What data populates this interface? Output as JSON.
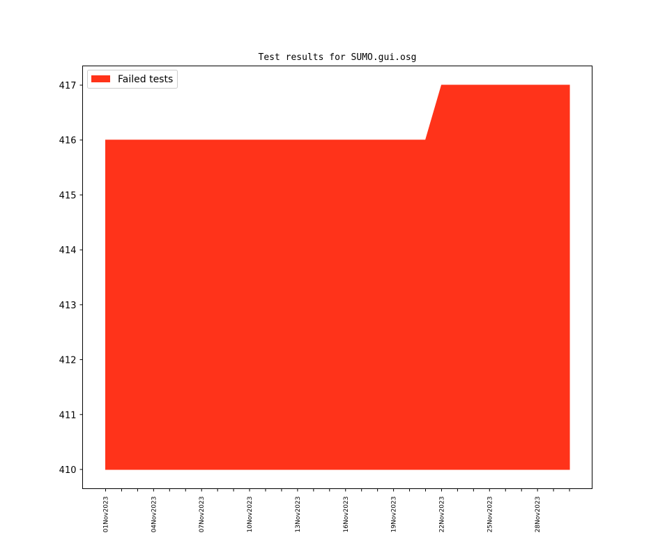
{
  "chart_data": {
    "type": "area",
    "title": "Test results for SUMO.gui.osg",
    "xlabel": "",
    "ylabel": "",
    "ylim": [
      409.65,
      417.35
    ],
    "yticks": [
      410,
      411,
      412,
      413,
      414,
      415,
      416,
      417
    ],
    "xticks": [
      "01Nov2023",
      "04Nov2023",
      "07Nov2023",
      "10Nov2023",
      "13Nov2023",
      "16Nov2023",
      "19Nov2023",
      "22Nov2023",
      "25Nov2023",
      "28Nov2023"
    ],
    "legend_position": "top-left",
    "grid": false,
    "series": [
      {
        "name": "Failed tests",
        "color": "#ff331a",
        "baseline": 410,
        "x": [
          "2023-11-01",
          "2023-11-02",
          "2023-11-03",
          "2023-11-04",
          "2023-11-05",
          "2023-11-06",
          "2023-11-07",
          "2023-11-08",
          "2023-11-09",
          "2023-11-10",
          "2023-11-11",
          "2023-11-12",
          "2023-11-13",
          "2023-11-14",
          "2023-11-15",
          "2023-11-16",
          "2023-11-17",
          "2023-11-18",
          "2023-11-19",
          "2023-11-20",
          "2023-11-21",
          "2023-11-22",
          "2023-11-23",
          "2023-11-24",
          "2023-11-25",
          "2023-11-26",
          "2023-11-27",
          "2023-11-28",
          "2023-11-29",
          "2023-11-30"
        ],
        "values": [
          416,
          416,
          416,
          416,
          416,
          416,
          416,
          416,
          416,
          416,
          416,
          416,
          416,
          416,
          416,
          416,
          416,
          416,
          416,
          416,
          416,
          417,
          417,
          417,
          417,
          417,
          417,
          417,
          417,
          417
        ]
      }
    ]
  }
}
